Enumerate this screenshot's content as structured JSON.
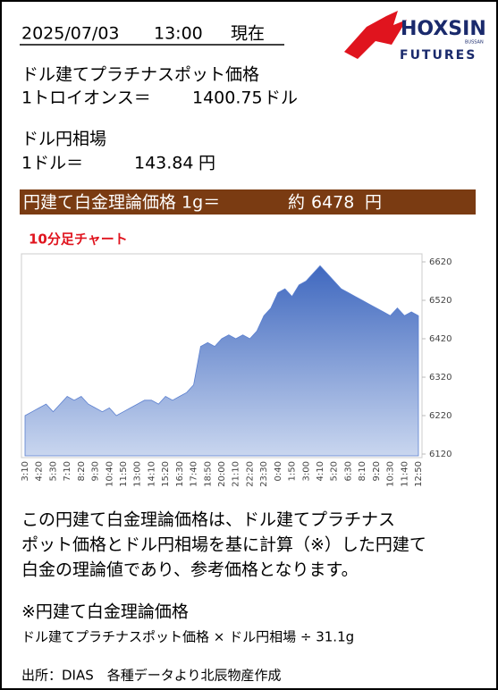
{
  "header": {
    "date": "2025/07/03",
    "time": "13:00",
    "suffix": "現在"
  },
  "logo": {
    "name": "HOXSIN",
    "sub": "FUTURES",
    "small": "BUSSAN"
  },
  "platinum": {
    "label": "ドル建てプラチナスポット価格",
    "unit_label": "1トロイオンス＝",
    "value": "1400.75",
    "unit": "ドル"
  },
  "fx": {
    "label": "ドル円相場",
    "unit_label": "1ドル＝",
    "value": "143.84",
    "unit": "円"
  },
  "banner": {
    "label": "円建て白金理論価格 1g＝",
    "prefix": "約",
    "value": "6478",
    "unit": "円"
  },
  "chart_data": {
    "type": "area",
    "title": "10分足チャート",
    "color": "#4a72c4",
    "categories": [
      "3:10",
      null,
      "4:20",
      null,
      "5:30",
      null,
      "7:10",
      null,
      "8:20",
      null,
      "9:30",
      null,
      "10:40",
      null,
      "11:50",
      null,
      "13:00",
      null,
      "14:10",
      null,
      "15:20",
      null,
      "16:30",
      null,
      "17:40",
      null,
      "18:50",
      null,
      "20:00",
      null,
      "21:10",
      null,
      "22:20",
      null,
      "23:30",
      null,
      "0:40",
      null,
      "1:50",
      null,
      "3:00",
      null,
      "4:10",
      null,
      "5:20",
      null,
      "6:30",
      null,
      "8:10",
      null,
      "9:20",
      null,
      "10:30",
      null,
      "11:40",
      null,
      "12:50"
    ],
    "values": [
      6220,
      6230,
      6240,
      6250,
      6230,
      6250,
      6270,
      6260,
      6270,
      6250,
      6240,
      6230,
      6240,
      6220,
      6230,
      6240,
      6250,
      6260,
      6260,
      6250,
      6270,
      6260,
      6270,
      6280,
      6300,
      6400,
      6410,
      6400,
      6420,
      6430,
      6420,
      6430,
      6420,
      6440,
      6480,
      6500,
      6540,
      6550,
      6530,
      6560,
      6570,
      6590,
      6610,
      6590,
      6570,
      6550,
      6540,
      6530,
      6520,
      6510,
      6500,
      6490,
      6480,
      6500,
      6480,
      6490,
      6480
    ],
    "ylim": [
      6120,
      6620
    ],
    "yticks": [
      6120,
      6220,
      6320,
      6420,
      6520,
      6620
    ]
  },
  "note": {
    "lines": [
      "この円建て白金理論価格は、ドル建てプラチナス",
      "ポット価格とドル円相場を基に計算（※）した円建て",
      "白金の理論値であり、参考価格となります。"
    ]
  },
  "formula": {
    "title": "※円建て白金理論価格",
    "text": "ドル建てプラチナスポット価格 × ドル円相場 ÷ 31.1g"
  },
  "source": "出所：DIAS　各種データより北辰物産作成"
}
